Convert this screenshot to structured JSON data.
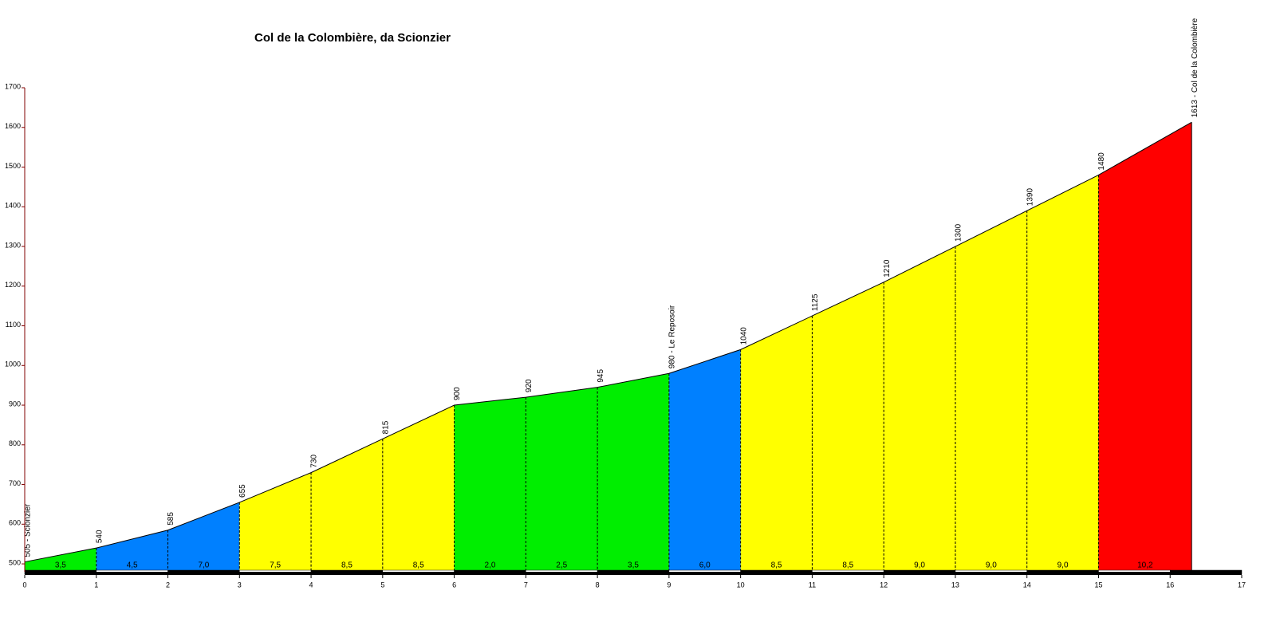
{
  "chart_data": {
    "type": "profile",
    "title": "Col de la Colombière, da Scionzier",
    "x": [
      0,
      1,
      2,
      3,
      4,
      5,
      6,
      7,
      8,
      9,
      10,
      11,
      12,
      13,
      14,
      15,
      16.3
    ],
    "values": [
      505,
      540,
      585,
      655,
      730,
      815,
      900,
      920,
      945,
      980,
      1040,
      1125,
      1210,
      1300,
      1390,
      1480,
      1613
    ],
    "value_labels": [
      "505 - Scionzier",
      "540",
      "585",
      "655",
      "730",
      "815",
      "900",
      "920",
      "945",
      "980 - Le Reposoir",
      "1040",
      "1125",
      "1210",
      "1300",
      "1390",
      "1480",
      "1613 - Col de la Colombière"
    ],
    "segments": {
      "values": [
        3.5,
        4.5,
        7.0,
        7.5,
        8.5,
        8.5,
        2.0,
        2.5,
        3.5,
        6.0,
        8.5,
        8.5,
        9.0,
        9.0,
        9.0,
        10.2
      ],
      "value_labels": [
        "3,5",
        "4,5",
        "7,0",
        "7,5",
        "8,5",
        "8,5",
        "2,0",
        "2,5",
        "3,5",
        "6,0",
        "8,5",
        "8,5",
        "9,0",
        "9,0",
        "9,0",
        "10,2"
      ],
      "colors": [
        "#00ee00",
        "#0080ff",
        "#0080ff",
        "#ffff00",
        "#ffff00",
        "#ffff00",
        "#00ee00",
        "#00ee00",
        "#00ee00",
        "#0080ff",
        "#ffff00",
        "#ffff00",
        "#ffff00",
        "#ffff00",
        "#ffff00",
        "#ff0000"
      ]
    },
    "xlim": [
      0,
      17
    ],
    "xticks": [
      0,
      1,
      2,
      3,
      4,
      5,
      6,
      7,
      8,
      9,
      10,
      11,
      12,
      13,
      14,
      15,
      16,
      17
    ],
    "ylim": [
      480,
      1700
    ],
    "yticks": [
      500,
      600,
      700,
      800,
      900,
      1000,
      1100,
      1200,
      1300,
      1400,
      1500,
      1600,
      1700
    ]
  }
}
